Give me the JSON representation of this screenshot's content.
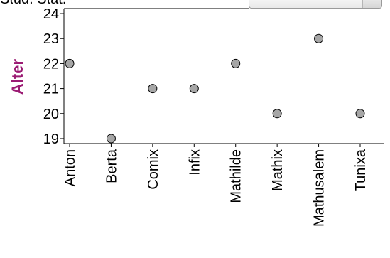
{
  "header": {
    "title": "Stud. Stat."
  },
  "chart_selector": {
    "selected": ""
  },
  "chart_data": {
    "type": "scatter",
    "title": "",
    "xlabel": "",
    "ylabel": "Alter",
    "categories": [
      "Anton",
      "Berta",
      "Comix",
      "Infix",
      "Mathilde",
      "Mathix",
      "Mathusalem",
      "Tunixa"
    ],
    "values": [
      22,
      19,
      21,
      21,
      22,
      20,
      23,
      20
    ],
    "ylim": [
      18.8,
      24.2
    ],
    "yticks": [
      19,
      20,
      21,
      22,
      23,
      24
    ],
    "grid": false,
    "colors": {
      "marker_fill": "#a6a6a6",
      "marker_stroke": "#000000",
      "axis": "#000000",
      "ylabel": "#9b1b73"
    }
  }
}
